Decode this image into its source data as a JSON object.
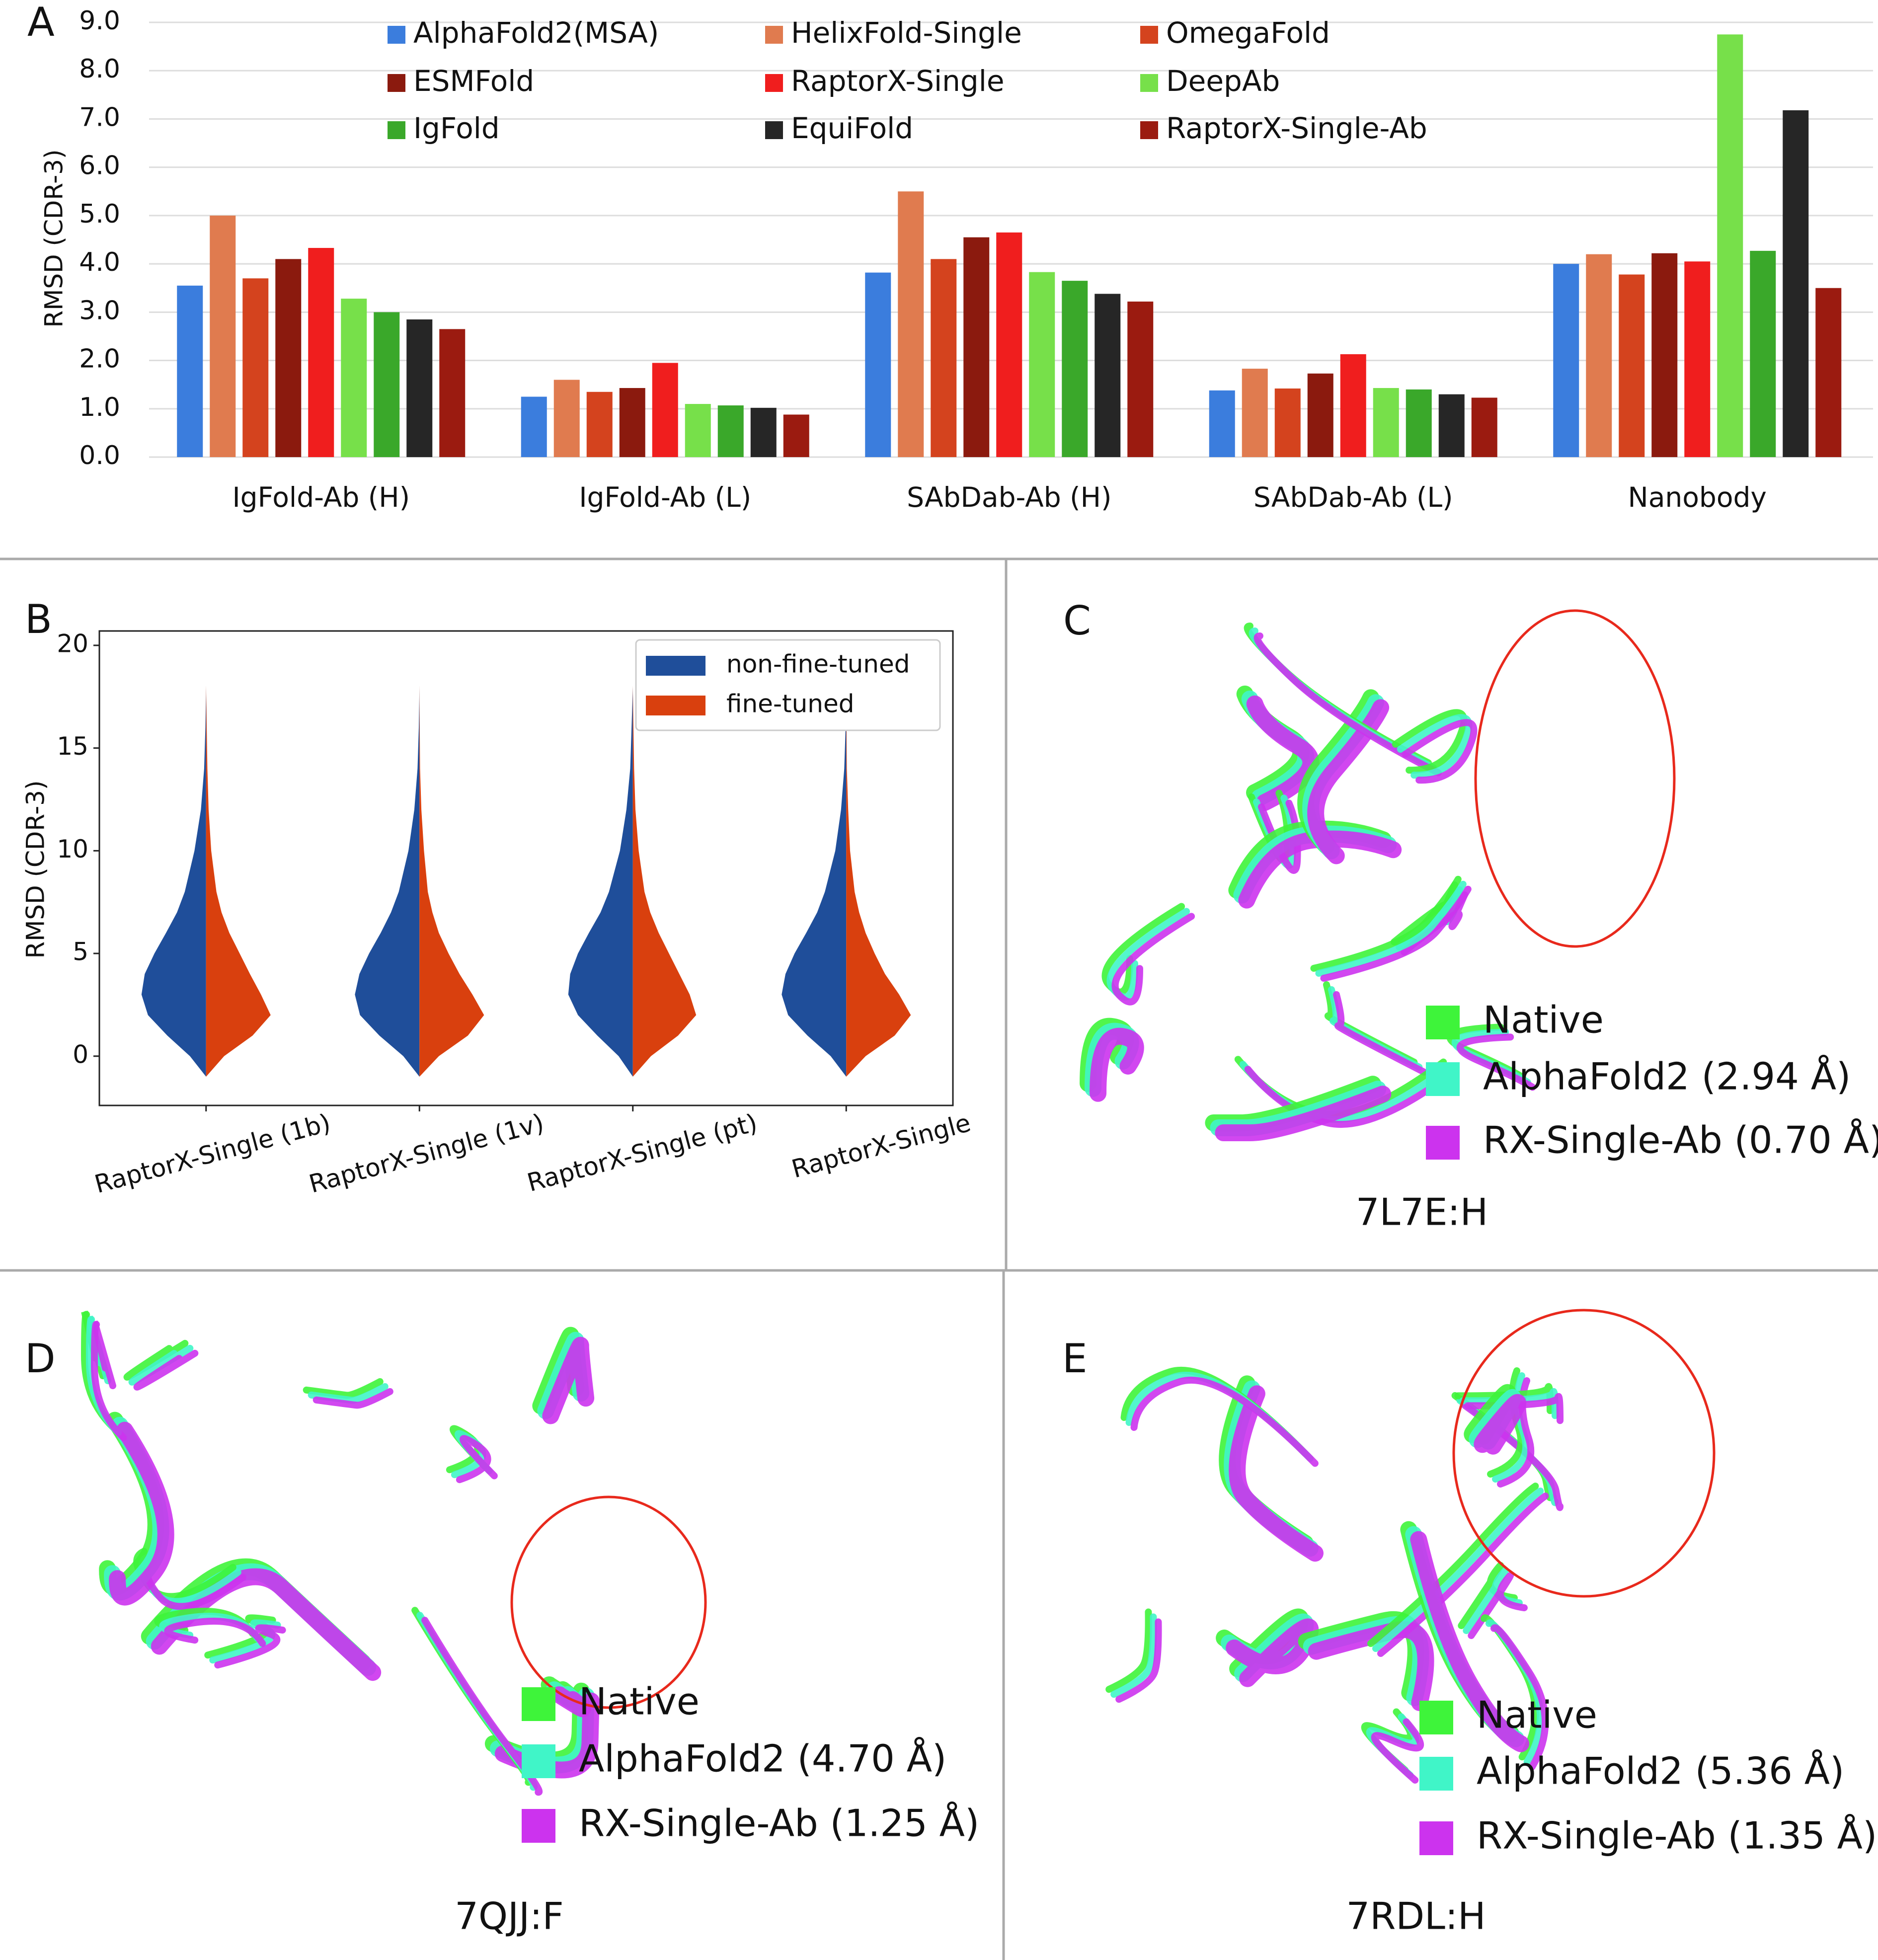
{
  "chart_data": [
    {
      "type": "bar",
      "panel_label": "A",
      "ylabel": "RMSD (CDR-3)",
      "ylim": [
        0,
        9
      ],
      "yticks": [
        {
          "value": 0,
          "label": "0.0"
        },
        {
          "value": 1,
          "label": "1.0"
        },
        {
          "value": 2,
          "label": "2.0"
        },
        {
          "value": 3,
          "label": "3.0"
        },
        {
          "value": 4,
          "label": "4.0"
        },
        {
          "value": 5,
          "label": "5.0"
        },
        {
          "value": 6,
          "label": "6.0"
        },
        {
          "value": 7,
          "label": "7.0"
        },
        {
          "value": 8,
          "label": "8.0"
        },
        {
          "value": 9,
          "label": "9.0"
        }
      ],
      "grid": true,
      "legend": "top",
      "categories": [
        "IgFold-Ab (H)",
        "IgFold-Ab (L)",
        "SAbDab-Ab (H)",
        "SAbDab-Ab (L)",
        "Nanobody"
      ],
      "series": [
        {
          "name": "AlphaFold2(MSA)",
          "color": "#3b7ddd",
          "values": [
            3.55,
            1.25,
            3.82,
            1.38,
            4.0
          ]
        },
        {
          "name": "HelixFold-Single",
          "color": "#e07b4f",
          "values": [
            5.0,
            1.6,
            5.5,
            1.83,
            4.2
          ]
        },
        {
          "name": "OmegaFold",
          "color": "#d4431e",
          "values": [
            3.7,
            1.35,
            4.1,
            1.42,
            3.78
          ]
        },
        {
          "name": "ESMFold",
          "color": "#8b1a0e",
          "values": [
            4.1,
            1.43,
            4.55,
            1.73,
            4.22
          ]
        },
        {
          "name": "RaptorX-Single",
          "color": "#f01e1e",
          "values": [
            4.33,
            1.95,
            4.65,
            2.13,
            4.05
          ]
        },
        {
          "name": "DeepAb",
          "color": "#77e04a",
          "values": [
            3.28,
            1.1,
            3.83,
            1.43,
            8.75
          ]
        },
        {
          "name": "IgFold",
          "color": "#3aa82a",
          "values": [
            3.0,
            1.07,
            3.65,
            1.4,
            4.27
          ]
        },
        {
          "name": "EquiFold",
          "color": "#262626",
          "values": [
            2.85,
            1.02,
            3.38,
            1.3,
            7.18
          ]
        },
        {
          "name": "RaptorX-Single-Ab",
          "color": "#9b1b10",
          "values": [
            2.65,
            0.88,
            3.22,
            1.23,
            3.5
          ]
        }
      ]
    },
    {
      "type": "violin",
      "panel_label": "B",
      "ylabel": "RMSD (CDR-3)",
      "ylim": [
        -2.4,
        20.7
      ],
      "yticks": [
        0,
        5,
        10,
        15,
        20
      ],
      "legend": "upper right",
      "categories": [
        "RaptorX-Single (1b)",
        "RaptorX-Single (1v)",
        "RaptorX-Single (pt)",
        "RaptorX-Single"
      ],
      "density_y": [
        -1,
        0,
        1,
        2,
        3,
        4,
        5,
        6,
        7,
        8,
        10,
        12,
        14,
        16,
        18
      ],
      "series": [
        {
          "name": "non-fine-tuned",
          "color": "#1f4e9a",
          "density": [
            [
              0,
              0.25,
              0.6,
              0.9,
              1.0,
              0.95,
              0.8,
              0.62,
              0.45,
              0.33,
              0.18,
              0.08,
              0.03,
              0.01,
              0
            ],
            [
              0,
              0.25,
              0.62,
              0.92,
              1.0,
              0.93,
              0.78,
              0.6,
              0.44,
              0.32,
              0.17,
              0.08,
              0.03,
              0.01,
              0
            ],
            [
              0,
              0.22,
              0.55,
              0.85,
              1.0,
              0.97,
              0.85,
              0.68,
              0.5,
              0.37,
              0.2,
              0.1,
              0.04,
              0.02,
              0
            ],
            [
              0,
              0.24,
              0.6,
              0.9,
              1.0,
              0.94,
              0.8,
              0.62,
              0.45,
              0.33,
              0.17,
              0.08,
              0.03,
              0.01,
              0
            ]
          ]
        },
        {
          "name": "fine-tuned",
          "color": "#d9400e",
          "density": [
            [
              0,
              0.28,
              0.72,
              1.0,
              0.85,
              0.68,
              0.52,
              0.36,
              0.24,
              0.16,
              0.08,
              0.04,
              0.02,
              0.01,
              0
            ],
            [
              0,
              0.3,
              0.75,
              1.0,
              0.82,
              0.62,
              0.45,
              0.3,
              0.2,
              0.13,
              0.07,
              0.03,
              0.01,
              0.005,
              0
            ],
            [
              0,
              0.28,
              0.7,
              0.98,
              0.88,
              0.72,
              0.56,
              0.4,
              0.27,
              0.18,
              0.09,
              0.04,
              0.02,
              0.01,
              0
            ],
            [
              0,
              0.3,
              0.75,
              1.0,
              0.82,
              0.6,
              0.44,
              0.3,
              0.2,
              0.13,
              0.06,
              0.03,
              0.01,
              0.005,
              0
            ]
          ]
        }
      ]
    }
  ],
  "structures": [
    {
      "panel_label": "C",
      "id": "7L7E:H",
      "legend": [
        {
          "label": "Native",
          "color": "#3ef43a"
        },
        {
          "label": "AlphaFold2 (2.94 Å)",
          "color": "#40f5c8"
        },
        {
          "label": "RX-Single-Ab (0.70 Å)",
          "color": "#cc33ee"
        }
      ]
    },
    {
      "panel_label": "D",
      "id": "7QJJ:F",
      "legend": [
        {
          "label": "Native",
          "color": "#3ef43a"
        },
        {
          "label": "AlphaFold2 (4.70 Å)",
          "color": "#40f5c8"
        },
        {
          "label": "RX-Single-Ab (1.25 Å)",
          "color": "#cc33ee"
        }
      ]
    },
    {
      "panel_label": "E",
      "id": "7RDL:H",
      "legend": [
        {
          "label": "Native",
          "color": "#3ef43a"
        },
        {
          "label": "AlphaFold2 (5.36 Å)",
          "color": "#40f5c8"
        },
        {
          "label": "RX-Single-Ab (1.35 Å)",
          "color": "#cc33ee"
        }
      ]
    }
  ]
}
